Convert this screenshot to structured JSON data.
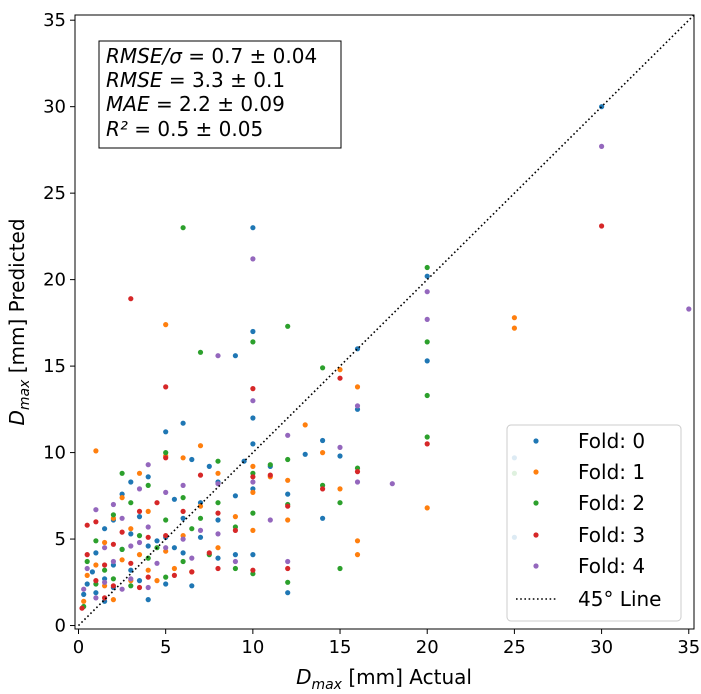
{
  "chart_data": {
    "type": "scatter",
    "title": "",
    "xlabel": {
      "symbol": "D",
      "sub": "max",
      "unit": "[mm]",
      "suffix": "Actual"
    },
    "ylabel": {
      "symbol": "D",
      "sub": "max",
      "unit": "[mm]",
      "suffix": "Predicted"
    },
    "xlim": [
      -0.2,
      35.3
    ],
    "ylim": [
      -0.2,
      35.3
    ],
    "xticks": [
      0,
      5,
      10,
      15,
      20,
      25,
      30,
      35
    ],
    "yticks": [
      0,
      5,
      10,
      15,
      20,
      25,
      30,
      35
    ],
    "grid": false,
    "legend_location": "bottom-right",
    "stats": [
      {
        "label": "RMSE/σ",
        "value": "= 0.7 ± 0.04"
      },
      {
        "label": "RMSE",
        "value": "= 3.3 ± 0.1"
      },
      {
        "label": "MAE",
        "value": "= 2.2 ± 0.09"
      },
      {
        "label": "R²",
        "value": "= 0.5 ± 0.05"
      }
    ],
    "reference_line": {
      "name": "45° Line",
      "from": [
        0,
        0
      ],
      "to": [
        35.3,
        35.3
      ],
      "color": "#000000"
    },
    "series": [
      {
        "name": "Fold: 0",
        "color": "#1f77b4",
        "points": [
          [
            0.3,
            1.8
          ],
          [
            0.5,
            2.4
          ],
          [
            0.8,
            3.1
          ],
          [
            1,
            1.9
          ],
          [
            1,
            4.2
          ],
          [
            1.5,
            2.7
          ],
          [
            1.5,
            5.6
          ],
          [
            1.5,
            1.4
          ],
          [
            2,
            3.5
          ],
          [
            2,
            6.1
          ],
          [
            2,
            2.2
          ],
          [
            2.5,
            4.4
          ],
          [
            2.5,
            7.6
          ],
          [
            3,
            3.2
          ],
          [
            3,
            8.3
          ],
          [
            3,
            5.3
          ],
          [
            3.5,
            2.6
          ],
          [
            3.5,
            6.3
          ],
          [
            4,
            4.6
          ],
          [
            4,
            1.5
          ],
          [
            4,
            8.6
          ],
          [
            4.5,
            4.9
          ],
          [
            5,
            5.1
          ],
          [
            5,
            11.2
          ],
          [
            5,
            2.4
          ],
          [
            5.5,
            4.5
          ],
          [
            5.5,
            7.3
          ],
          [
            6,
            11.7
          ],
          [
            6,
            6.2
          ],
          [
            6,
            4.2
          ],
          [
            6.5,
            9.6
          ],
          [
            6.5,
            2.3
          ],
          [
            7,
            7.1
          ],
          [
            7,
            5.1
          ],
          [
            7.5,
            9.2
          ],
          [
            8,
            8.3
          ],
          [
            8,
            3.9
          ],
          [
            8,
            6.1
          ],
          [
            9,
            15.6
          ],
          [
            9,
            7.5
          ],
          [
            9,
            4.1
          ],
          [
            9.5,
            9.5
          ],
          [
            10,
            23
          ],
          [
            10,
            17
          ],
          [
            10,
            12
          ],
          [
            10,
            10.5
          ],
          [
            10,
            7.9
          ],
          [
            10,
            4.1
          ],
          [
            11,
            9.2
          ],
          [
            12,
            7.6
          ],
          [
            12,
            1.9
          ],
          [
            13,
            9.9
          ],
          [
            14,
            10.7
          ],
          [
            14,
            6.2
          ],
          [
            15,
            9.8
          ],
          [
            16,
            16
          ],
          [
            16,
            12.5
          ],
          [
            20,
            20.2
          ],
          [
            20,
            15.3
          ],
          [
            25,
            9.7
          ],
          [
            25,
            5.1
          ],
          [
            30,
            30
          ]
        ]
      },
      {
        "name": "Fold: 1",
        "color": "#ff7f0e",
        "points": [
          [
            0.3,
            1.4
          ],
          [
            0.5,
            2.9
          ],
          [
            1,
            10.1
          ],
          [
            1,
            3.5
          ],
          [
            1.5,
            2.3
          ],
          [
            1.5,
            4.8
          ],
          [
            2,
            6.2
          ],
          [
            2,
            1.5
          ],
          [
            2.5,
            3.8
          ],
          [
            2.5,
            7.4
          ],
          [
            3,
            2.6
          ],
          [
            3,
            5.6
          ],
          [
            3.5,
            4.1
          ],
          [
            3.5,
            8.8
          ],
          [
            4,
            3.2
          ],
          [
            4,
            6.6
          ],
          [
            4.5,
            2.6
          ],
          [
            5,
            17.4
          ],
          [
            5,
            9.8
          ],
          [
            5,
            4.3
          ],
          [
            5.5,
            3.3
          ],
          [
            6,
            9.7
          ],
          [
            6,
            5.2
          ],
          [
            6.5,
            3.1
          ],
          [
            7,
            10.4
          ],
          [
            7,
            6.9
          ],
          [
            8,
            8.8
          ],
          [
            8,
            4.5
          ],
          [
            9,
            6.3
          ],
          [
            10,
            9.2
          ],
          [
            10,
            7.7
          ],
          [
            10,
            5.5
          ],
          [
            11,
            8.6
          ],
          [
            12,
            8.4
          ],
          [
            12,
            6.1
          ],
          [
            13,
            11.6
          ],
          [
            14,
            10
          ],
          [
            15,
            14.8
          ],
          [
            15,
            7.9
          ],
          [
            16,
            13.8
          ],
          [
            16,
            4.9
          ],
          [
            16,
            4.1
          ],
          [
            20,
            6.8
          ],
          [
            25,
            17.8
          ],
          [
            25,
            17.2
          ]
        ]
      },
      {
        "name": "Fold: 2",
        "color": "#2ca02c",
        "points": [
          [
            0.3,
            1.1
          ],
          [
            0.5,
            3.7
          ],
          [
            1,
            2.4
          ],
          [
            1,
            4.9
          ],
          [
            1.5,
            3.2
          ],
          [
            2,
            6.4
          ],
          [
            2,
            2.7
          ],
          [
            2.5,
            8.8
          ],
          [
            2.5,
            4.4
          ],
          [
            3,
            2.3
          ],
          [
            3,
            7.1
          ],
          [
            3.5,
            5.2
          ],
          [
            4,
            3.9
          ],
          [
            4,
            8.1
          ],
          [
            4.5,
            4.5
          ],
          [
            5,
            10
          ],
          [
            5,
            6.1
          ],
          [
            5,
            2.8
          ],
          [
            6,
            23
          ],
          [
            6,
            7.4
          ],
          [
            6,
            3.7
          ],
          [
            6.5,
            5.6
          ],
          [
            7,
            15.8
          ],
          [
            7,
            6.2
          ],
          [
            7.5,
            4.1
          ],
          [
            8,
            7.1
          ],
          [
            8,
            9.5
          ],
          [
            9,
            5.7
          ],
          [
            9,
            3.3
          ],
          [
            10,
            16.4
          ],
          [
            10,
            8.8
          ],
          [
            10,
            6.5
          ],
          [
            10,
            3
          ],
          [
            11,
            9.3
          ],
          [
            12,
            17.3
          ],
          [
            12,
            9.6
          ],
          [
            12,
            7
          ],
          [
            12,
            2.5
          ],
          [
            14,
            14.9
          ],
          [
            14,
            8.1
          ],
          [
            15,
            7.1
          ],
          [
            15,
            3.3
          ],
          [
            16,
            9.1
          ],
          [
            20,
            20.7
          ],
          [
            20,
            16.4
          ],
          [
            20,
            13.3
          ],
          [
            20,
            10.9
          ],
          [
            25,
            8.8
          ]
        ]
      },
      {
        "name": "Fold: 3",
        "color": "#d62728",
        "points": [
          [
            0.2,
            1
          ],
          [
            0.5,
            5.8
          ],
          [
            0.5,
            4.1
          ],
          [
            1,
            2.6
          ],
          [
            1,
            6
          ],
          [
            1.5,
            3.5
          ],
          [
            1.5,
            1.6
          ],
          [
            2,
            4.7
          ],
          [
            2,
            2.3
          ],
          [
            2.5,
            5.4
          ],
          [
            3,
            18.9
          ],
          [
            3,
            3.6
          ],
          [
            3.5,
            6.6
          ],
          [
            3.5,
            2.2
          ],
          [
            4,
            5.1
          ],
          [
            4,
            2.8
          ],
          [
            4.5,
            7.1
          ],
          [
            5,
            13.8
          ],
          [
            5,
            9.7
          ],
          [
            5,
            5.2
          ],
          [
            5.5,
            2.9
          ],
          [
            6,
            6.6
          ],
          [
            6.5,
            3.1
          ],
          [
            7,
            8.7
          ],
          [
            7.5,
            4.2
          ],
          [
            8,
            6.5
          ],
          [
            8,
            3.3
          ],
          [
            9,
            5.5
          ],
          [
            10,
            13.7
          ],
          [
            10,
            8.6
          ],
          [
            10,
            3.2
          ],
          [
            11,
            8.7
          ],
          [
            12,
            6.9
          ],
          [
            12,
            3.3
          ],
          [
            14,
            7.9
          ],
          [
            15,
            14.3
          ],
          [
            16,
            8.9
          ],
          [
            20,
            10.5
          ],
          [
            30,
            23.1
          ]
        ]
      },
      {
        "name": "Fold: 4",
        "color": "#9467bd",
        "points": [
          [
            0.3,
            2.1
          ],
          [
            0.5,
            3.3
          ],
          [
            1,
            6.7
          ],
          [
            1,
            1.6
          ],
          [
            1.5,
            4.5
          ],
          [
            1.5,
            2.5
          ],
          [
            2,
            7
          ],
          [
            2,
            3.7
          ],
          [
            2.5,
            2.1
          ],
          [
            2.5,
            6.2
          ],
          [
            3,
            4.6
          ],
          [
            3,
            2.7
          ],
          [
            3.5,
            7.9
          ],
          [
            3.5,
            4.8
          ],
          [
            4,
            9.3
          ],
          [
            4,
            5.7
          ],
          [
            4,
            2.2
          ],
          [
            4.5,
            3.6
          ],
          [
            5,
            7.7
          ],
          [
            5,
            4.5
          ],
          [
            6,
            5
          ],
          [
            6,
            8.1
          ],
          [
            6.5,
            3.9
          ],
          [
            7,
            5.5
          ],
          [
            8,
            15.6
          ],
          [
            8,
            8.2
          ],
          [
            8,
            5.3
          ],
          [
            9,
            3.7
          ],
          [
            10,
            21.2
          ],
          [
            10,
            13
          ],
          [
            10,
            8.3
          ],
          [
            11,
            6.1
          ],
          [
            12,
            11
          ],
          [
            12,
            3.7
          ],
          [
            15,
            10.3
          ],
          [
            16,
            12.7
          ],
          [
            16,
            8.3
          ],
          [
            18,
            8.2
          ],
          [
            20,
            19.3
          ],
          [
            20,
            17.7
          ],
          [
            30,
            27.7
          ],
          [
            35,
            18.3
          ]
        ]
      }
    ]
  }
}
